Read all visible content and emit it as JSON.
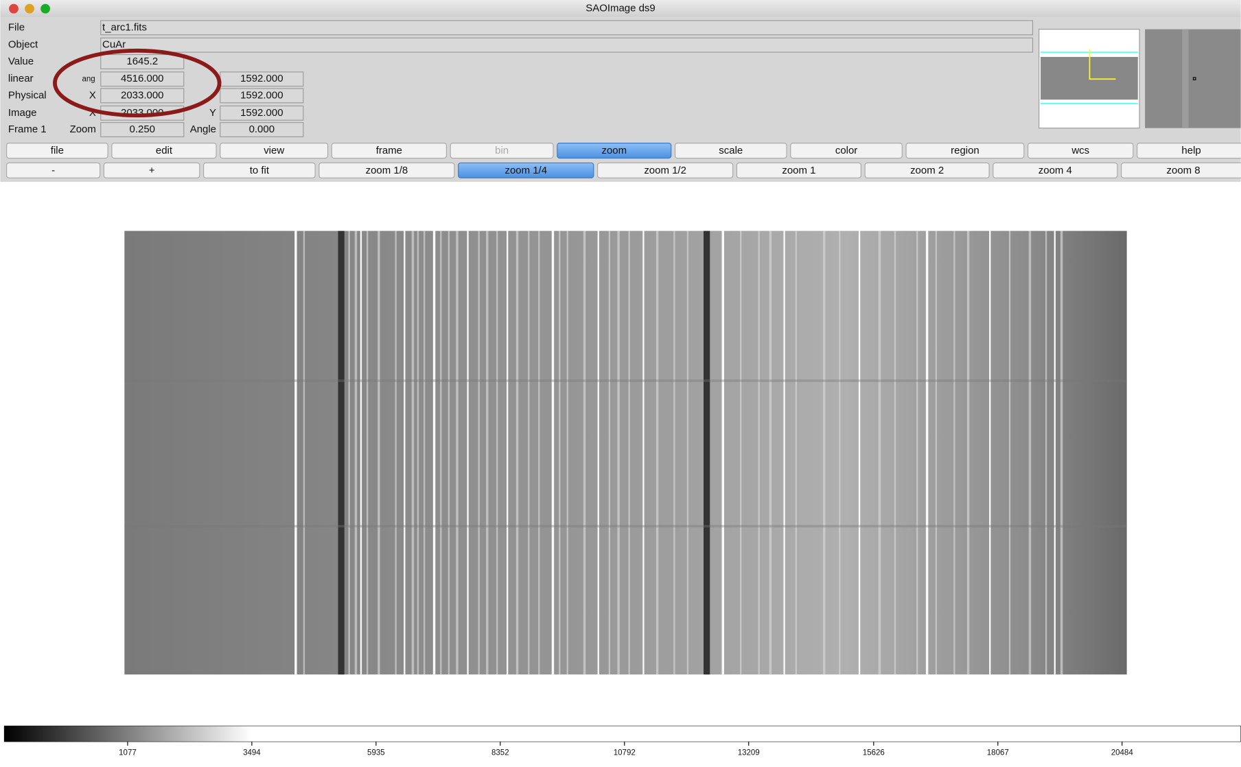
{
  "window": {
    "title": "SAOImage ds9"
  },
  "info": {
    "file": {
      "label": "File",
      "value": "t_arc1.fits"
    },
    "object": {
      "label": "Object",
      "value": "CuAr"
    },
    "value": {
      "label": "Value",
      "value": "1645.2"
    },
    "linear": {
      "label": "linear",
      "unit": "ang",
      "x": "4516.000",
      "y": "1592.000"
    },
    "physical": {
      "label": "Physical",
      "axis": "X",
      "x": "2033.000",
      "y": "1592.000"
    },
    "image": {
      "label": "Image",
      "axis_x": "X",
      "x": "2033.000",
      "axis_y": "Y",
      "y": "1592.000"
    },
    "frame": {
      "label": "Frame 1",
      "zoom_label": "Zoom",
      "zoom": "0.250",
      "angle_label": "Angle",
      "angle": "0.000"
    }
  },
  "menu": [
    "file",
    "edit",
    "view",
    "frame",
    "bin",
    "zoom",
    "scale",
    "color",
    "region",
    "wcs",
    "help"
  ],
  "zoom_buttons": [
    "-",
    "+",
    "to fit",
    "zoom 1/8",
    "zoom 1/4",
    "zoom 1/2",
    "zoom 1",
    "zoom 2",
    "zoom 4",
    "zoom 8"
  ],
  "colorbar": {
    "ticks": [
      1077,
      3494,
      5935,
      8352,
      10792,
      13209,
      15626,
      18067,
      20484
    ]
  }
}
